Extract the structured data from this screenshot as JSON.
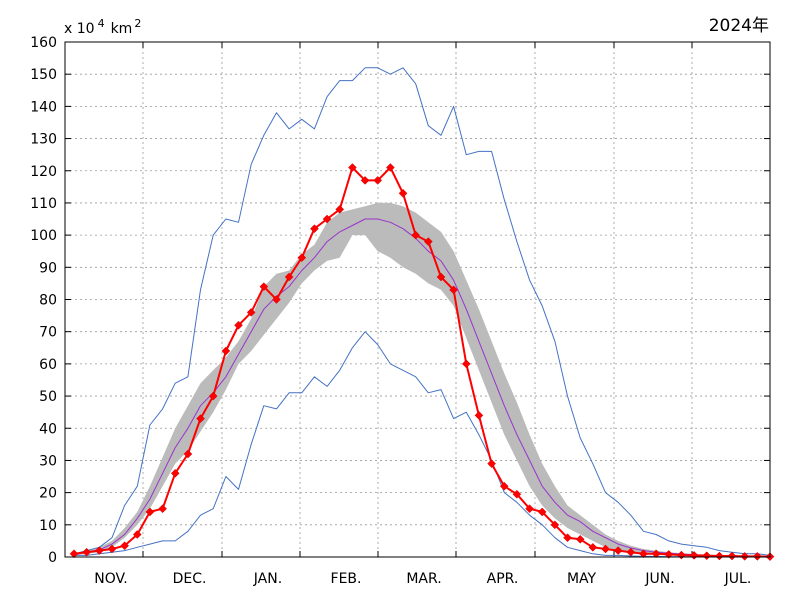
{
  "chart_data": {
    "type": "line",
    "title": "2024年",
    "ylabel_prefix": "x 10",
    "ylabel_exp": "4",
    "ylabel_unit": "km",
    "ylabel_unit_exp": "2",
    "ylim": [
      0,
      160
    ],
    "yticks": [
      0,
      10,
      20,
      30,
      40,
      50,
      60,
      70,
      80,
      90,
      100,
      110,
      120,
      130,
      140,
      150,
      160
    ],
    "months": [
      "NOV.",
      "DEC.",
      "JAN.",
      "FEB.",
      "MAR.",
      "APR.",
      "MAY",
      "JUN.",
      "JUL."
    ],
    "grid": true,
    "colors": {
      "current": "#ff0000",
      "current_marker": "#ff0000",
      "mean": "#9933cc",
      "band": "#bbbbbb",
      "envelope": "#4472c4",
      "grid": "#999999"
    },
    "series": [
      {
        "key": "max_envelope",
        "x": [
          0,
          1,
          2,
          3,
          4,
          5,
          6,
          7,
          8,
          9,
          10,
          11,
          12,
          13,
          14,
          15,
          16,
          17,
          18,
          19,
          20,
          21,
          22,
          23,
          24,
          25,
          26,
          27,
          28,
          29,
          30,
          31,
          32,
          33,
          34,
          35,
          36,
          37,
          38,
          39,
          40,
          41,
          42,
          43,
          44,
          45,
          46,
          47,
          48,
          49,
          50,
          51,
          52,
          53,
          54,
          55
        ],
        "values": [
          1,
          2,
          3,
          6,
          16,
          22,
          41,
          46,
          54,
          56,
          83,
          100,
          105,
          104,
          122,
          131,
          138,
          133,
          136,
          133,
          143,
          148,
          148,
          152,
          152,
          150,
          152,
          147,
          134,
          131,
          140,
          125,
          126,
          126,
          111,
          98,
          86,
          78,
          67,
          50,
          37,
          29,
          20,
          17,
          13,
          8,
          7,
          5,
          4,
          3.5,
          3,
          2,
          1.5,
          1,
          1,
          0.5
        ]
      },
      {
        "key": "min_envelope",
        "x": [
          0,
          1,
          2,
          3,
          4,
          5,
          6,
          7,
          8,
          9,
          10,
          11,
          12,
          13,
          14,
          15,
          16,
          17,
          18,
          19,
          20,
          21,
          22,
          23,
          24,
          25,
          26,
          27,
          28,
          29,
          30,
          31,
          32,
          33,
          34,
          35,
          36,
          37,
          38,
          39,
          40,
          41,
          42,
          43,
          44,
          45,
          46,
          47,
          48,
          49,
          50,
          51,
          52,
          53,
          54,
          55
        ],
        "values": [
          0.5,
          0.5,
          1,
          1.5,
          2,
          3,
          4,
          5,
          5,
          8,
          13,
          15,
          25,
          21,
          35,
          47,
          46,
          51,
          51,
          56,
          53,
          58,
          65,
          70,
          66,
          60,
          58,
          56,
          51,
          52,
          43,
          45,
          38,
          30,
          20,
          17,
          13,
          10,
          6,
          3,
          2,
          1,
          0.5,
          0.5,
          0.3,
          0.2,
          0.2,
          0.1,
          0.1,
          0.1,
          0.1,
          0.1,
          0.1,
          0.1,
          0.1,
          0
        ]
      },
      {
        "key": "std_upper",
        "x": [
          0,
          1,
          2,
          3,
          4,
          5,
          6,
          7,
          8,
          9,
          10,
          11,
          12,
          13,
          14,
          15,
          16,
          17,
          18,
          19,
          20,
          21,
          22,
          23,
          24,
          25,
          26,
          27,
          28,
          29,
          30,
          31,
          32,
          33,
          34,
          35,
          36,
          37,
          38,
          39,
          40,
          41,
          42,
          43,
          44,
          45,
          46,
          47,
          48,
          49,
          50,
          51,
          52,
          53,
          54,
          55
        ],
        "values": [
          1,
          2,
          3,
          5,
          9,
          14,
          22,
          31,
          40,
          47,
          54,
          58,
          62,
          67,
          74,
          84,
          88,
          89,
          94,
          97,
          104,
          107,
          108,
          109,
          110,
          110,
          109,
          107,
          104,
          101,
          95,
          86,
          77,
          67,
          57,
          48,
          38,
          29,
          22,
          16,
          13,
          10,
          7,
          5,
          3.5,
          2.5,
          2,
          1.5,
          1.2,
          1,
          0.8,
          0.6,
          0.5,
          0.4,
          0.3,
          0.2
        ]
      },
      {
        "key": "std_lower",
        "x": [
          0,
          1,
          2,
          3,
          4,
          5,
          6,
          7,
          8,
          9,
          10,
          11,
          12,
          13,
          14,
          15,
          16,
          17,
          18,
          19,
          20,
          21,
          22,
          23,
          24,
          25,
          26,
          27,
          28,
          29,
          30,
          31,
          32,
          33,
          34,
          35,
          36,
          37,
          38,
          39,
          40,
          41,
          42,
          43,
          44,
          45,
          46,
          47,
          48,
          49,
          50,
          51,
          52,
          53,
          54,
          55
        ],
        "values": [
          0.5,
          1,
          1.5,
          3,
          6,
          10,
          15,
          22,
          29,
          33,
          39,
          45,
          52,
          60,
          64,
          69,
          74,
          79,
          85,
          89,
          92,
          93,
          100,
          100,
          95,
          93,
          90,
          88,
          85,
          83,
          78,
          68,
          58,
          48,
          38,
          30,
          22,
          16,
          12,
          9,
          7,
          5,
          3,
          2,
          1.5,
          1,
          0.8,
          0.6,
          0.4,
          0.3,
          0.2,
          0.2,
          0.1,
          0.1,
          0.1,
          0
        ]
      },
      {
        "key": "mean",
        "x": [
          0,
          1,
          2,
          3,
          4,
          5,
          6,
          7,
          8,
          9,
          10,
          11,
          12,
          13,
          14,
          15,
          16,
          17,
          18,
          19,
          20,
          21,
          22,
          23,
          24,
          25,
          26,
          27,
          28,
          29,
          30,
          31,
          32,
          33,
          34,
          35,
          36,
          37,
          38,
          39,
          40,
          41,
          42,
          43,
          44,
          45,
          46,
          47,
          48,
          49,
          50,
          51,
          52,
          53,
          54,
          55
        ],
        "values": [
          0.7,
          1.5,
          2.2,
          4,
          7,
          12,
          18,
          26,
          34,
          40,
          47,
          51,
          56,
          63,
          70,
          77,
          81,
          84,
          89,
          93,
          98,
          101,
          103,
          105,
          105,
          104,
          102,
          99,
          95,
          92,
          86,
          77,
          67,
          57,
          47,
          38,
          30,
          22,
          17,
          13,
          11,
          8,
          6,
          4,
          2.8,
          2,
          1.5,
          1.2,
          0.9,
          0.7,
          0.5,
          0.4,
          0.3,
          0.2,
          0.2,
          0.1
        ]
      },
      {
        "key": "current",
        "x": [
          0,
          1,
          2,
          3,
          4,
          5,
          6,
          7,
          8,
          9,
          10,
          11,
          12,
          13,
          14,
          15,
          16,
          17,
          18,
          19,
          20,
          21,
          22,
          23,
          24,
          25,
          26,
          27,
          28,
          29,
          30,
          31,
          32,
          33,
          34,
          35,
          36,
          37,
          38,
          39,
          40,
          41,
          42,
          43,
          44,
          45,
          46,
          47,
          48,
          49,
          50,
          51,
          52,
          53,
          54,
          55
        ],
        "values": [
          1,
          1.5,
          2,
          2.5,
          3.5,
          7,
          14,
          15,
          26,
          32,
          43,
          50,
          64,
          72,
          76,
          84,
          80,
          87,
          93,
          102,
          105,
          108,
          121,
          117,
          117,
          121,
          113,
          100,
          98,
          87,
          83,
          60,
          44,
          29,
          22,
          19.5,
          15,
          14,
          10,
          6,
          5.5,
          3,
          2.5,
          2,
          1.5,
          1,
          1,
          0.8,
          0.6,
          0.5,
          0.4,
          0.3,
          0.3,
          0.2,
          0.2,
          0.1
        ]
      }
    ]
  }
}
